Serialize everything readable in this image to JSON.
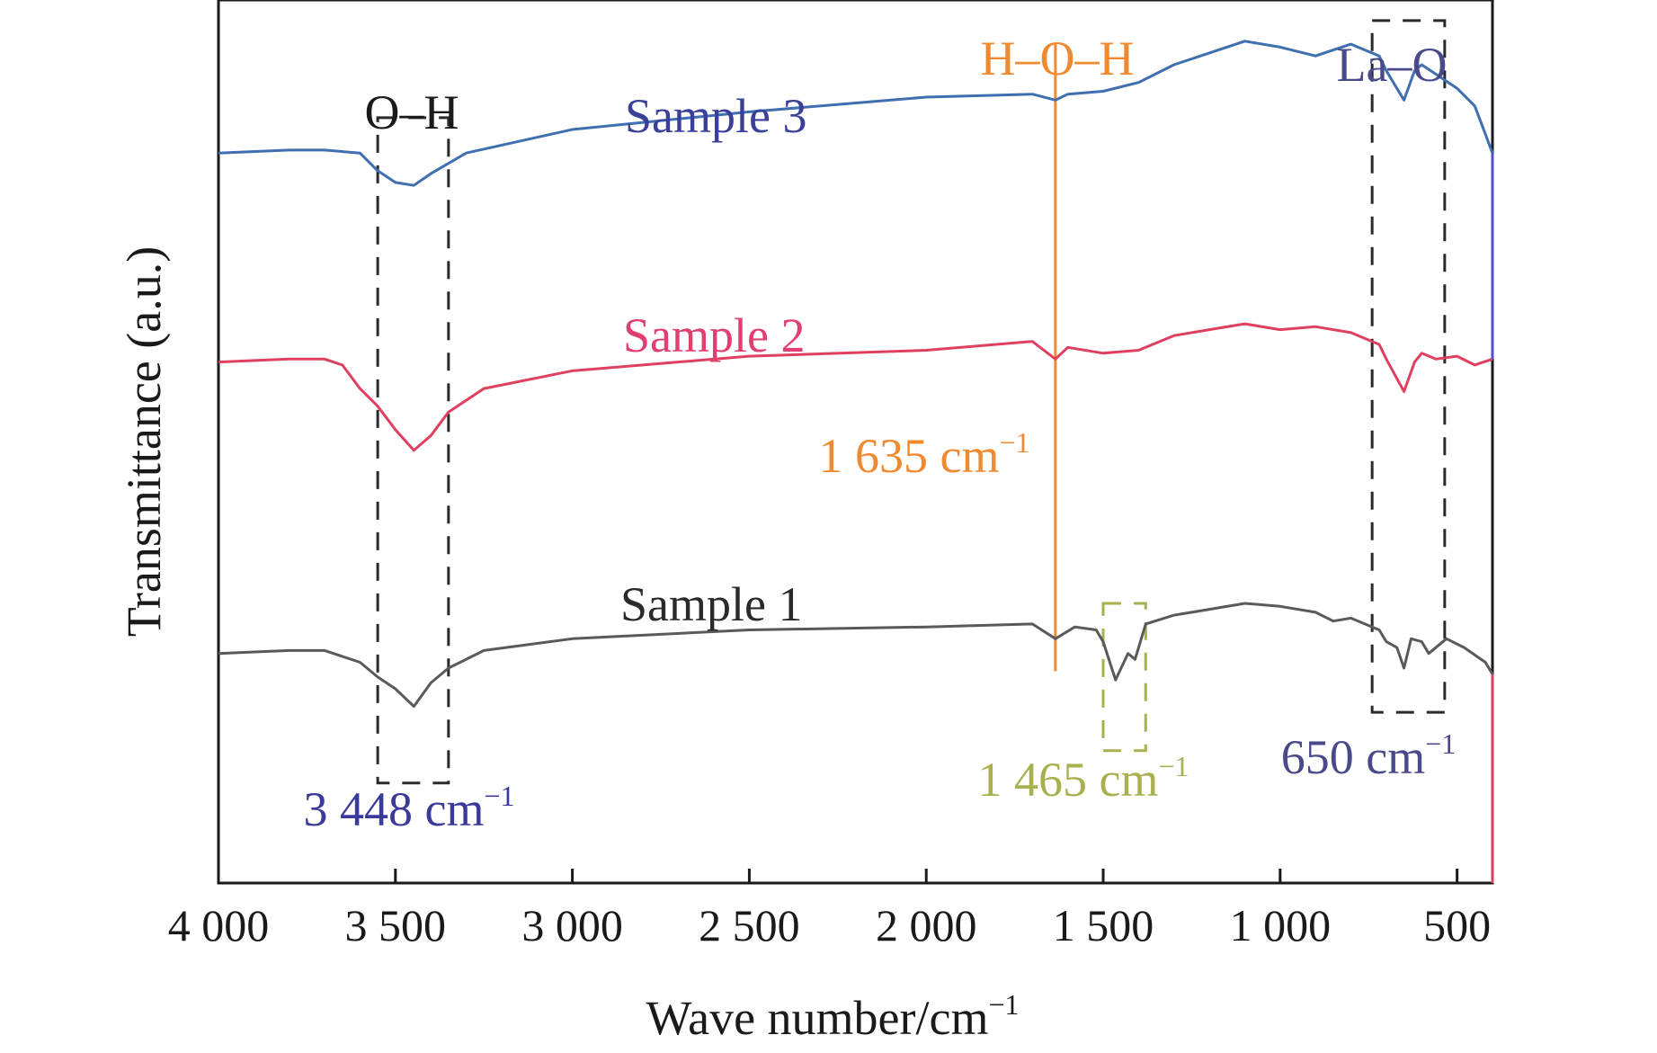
{
  "chart_data": {
    "type": "line",
    "xlabel": "Wave number/cm",
    "xlabel_sup": "−1",
    "ylabel": "Transmittance (a.u.)",
    "xlim": [
      4000,
      400
    ],
    "ylim": [
      0,
      3
    ],
    "yticks_shown": false,
    "xticks": [
      4000,
      3500,
      3000,
      2500,
      2000,
      1500,
      1000,
      500
    ],
    "xtick_labels": [
      "4 000",
      "3 500",
      "3 000",
      "2 500",
      "2 000",
      "1 500",
      "1 000",
      "500"
    ],
    "series": [
      {
        "name": "Sample 1",
        "color": "#5a5a5a",
        "label_color": "#2a2a2a",
        "x": [
          4000,
          3800,
          3700,
          3600,
          3550,
          3500,
          3448,
          3400,
          3350,
          3250,
          3000,
          2500,
          2000,
          1700,
          1635,
          1580,
          1520,
          1500,
          1465,
          1430,
          1410,
          1380,
          1300,
          1200,
          1100,
          1000,
          900,
          850,
          800,
          720,
          700,
          670,
          650,
          630,
          600,
          580,
          530,
          480,
          420,
          400
        ],
        "y": [
          0.78,
          0.79,
          0.79,
          0.75,
          0.7,
          0.66,
          0.6,
          0.68,
          0.73,
          0.79,
          0.83,
          0.86,
          0.87,
          0.88,
          0.83,
          0.87,
          0.86,
          0.82,
          0.69,
          0.78,
          0.76,
          0.88,
          0.91,
          0.93,
          0.95,
          0.94,
          0.92,
          0.89,
          0.9,
          0.86,
          0.82,
          0.8,
          0.73,
          0.83,
          0.82,
          0.78,
          0.83,
          0.8,
          0.75,
          0.71
        ]
      },
      {
        "name": "Sample 2",
        "color": "#e04060",
        "label_color": "#e04070",
        "x": [
          4000,
          3800,
          3700,
          3650,
          3600,
          3550,
          3500,
          3448,
          3400,
          3350,
          3250,
          3000,
          2500,
          2000,
          1700,
          1635,
          1600,
          1500,
          1400,
          1300,
          1200,
          1100,
          1000,
          900,
          800,
          720,
          700,
          650,
          620,
          600,
          560,
          500,
          450,
          400
        ],
        "y": [
          1.77,
          1.78,
          1.78,
          1.76,
          1.68,
          1.62,
          1.54,
          1.47,
          1.52,
          1.6,
          1.68,
          1.74,
          1.79,
          1.81,
          1.84,
          1.78,
          1.82,
          1.8,
          1.81,
          1.86,
          1.88,
          1.9,
          1.88,
          1.89,
          1.87,
          1.83,
          1.78,
          1.67,
          1.77,
          1.8,
          1.78,
          1.79,
          1.76,
          1.78
        ]
      },
      {
        "name": "Sample 3",
        "color": "#3f6fb0",
        "label_color": "#3a3f9a",
        "x": [
          4000,
          3800,
          3700,
          3600,
          3550,
          3500,
          3448,
          3400,
          3300,
          3000,
          2500,
          2000,
          1700,
          1635,
          1600,
          1500,
          1400,
          1300,
          1200,
          1100,
          1000,
          900,
          850,
          800,
          720,
          700,
          650,
          620,
          600,
          550,
          500,
          450,
          400
        ],
        "y": [
          2.48,
          2.49,
          2.49,
          2.48,
          2.42,
          2.38,
          2.37,
          2.41,
          2.48,
          2.56,
          2.62,
          2.67,
          2.68,
          2.66,
          2.68,
          2.69,
          2.72,
          2.78,
          2.82,
          2.86,
          2.84,
          2.81,
          2.83,
          2.85,
          2.81,
          2.76,
          2.66,
          2.76,
          2.78,
          2.74,
          2.7,
          2.64,
          2.48
        ]
      }
    ],
    "annotations": {
      "oh_label": "O–H",
      "oh_wavenumber": "3 448 cm",
      "oh_wavenumber_sup": "−1",
      "hoh_label": "H–O–H",
      "hoh_wavenumber": "1 635 cm",
      "hoh_wavenumber_sup": "−1",
      "c1465_wavenumber": "1 465 cm",
      "c1465_wavenumber_sup": "−1",
      "lao_label": "La–O",
      "lao_wavenumber": "650 cm",
      "lao_wavenumber_sup": "−1",
      "oh_color": "#1a1a1a",
      "oh_value_color": "#3a3a9a",
      "hoh_color": "#f08a30",
      "c1465_color": "#a8b050",
      "lao_color": "#4a4a8a",
      "box_color": "#2a2a2a"
    }
  }
}
